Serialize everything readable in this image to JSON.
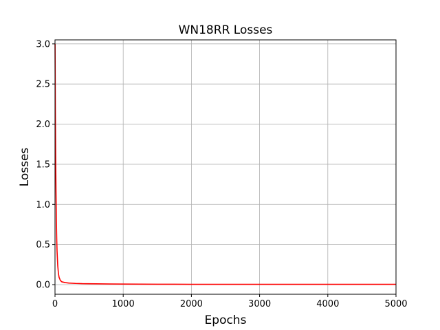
{
  "chart_data": {
    "type": "line",
    "title": "WN18RR Losses",
    "xlabel": "Epochs",
    "ylabel": "Losses",
    "xlim": [
      0,
      5000
    ],
    "ylim": [
      -0.12,
      3.05
    ],
    "xticks": [
      0,
      1000,
      2000,
      3000,
      4000,
      5000
    ],
    "xtick_labels": [
      "0",
      "1000",
      "2000",
      "3000",
      "4000",
      "5000"
    ],
    "yticks": [
      0.0,
      0.5,
      1.0,
      1.5,
      2.0,
      2.5,
      3.0
    ],
    "ytick_labels": [
      "0.0",
      "0.5",
      "1.0",
      "1.5",
      "2.0",
      "2.5",
      "3.0"
    ],
    "grid": true,
    "series": [
      {
        "color": "#ff0000",
        "x": [
          1,
          5,
          10,
          15,
          20,
          25,
          30,
          40,
          50,
          60,
          80,
          100,
          150,
          200,
          300,
          400,
          600,
          800,
          1000,
          1500,
          2000,
          2500,
          3000,
          3500,
          4000,
          4500,
          5000
        ],
        "y": [
          3.0,
          2.2,
          1.6,
          1.15,
          0.82,
          0.58,
          0.42,
          0.24,
          0.14,
          0.09,
          0.05,
          0.035,
          0.025,
          0.02,
          0.015,
          0.012,
          0.01,
          0.008,
          0.007,
          0.005,
          0.004,
          0.004,
          0.004,
          0.004,
          0.004,
          0.004,
          0.004
        ]
      }
    ]
  }
}
